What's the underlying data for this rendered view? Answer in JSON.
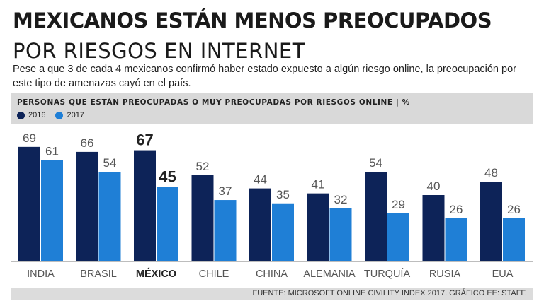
{
  "header": {
    "title": "MEXICANOS ESTÁN MENOS PREOCUPADOS",
    "subtitle": "POR RIESGOS EN INTERNET",
    "intro": "Pese a que 3 de cada 4 mexicanos confirmó haber estado expuesto a algún riesgo online, la preocupación por este tipo de amenazas cayó en el país."
  },
  "panel": {
    "heading": "PERSONAS QUE ESTÁN PREOCUPADAS O MUY PREOCUPADAS POR RIESGOS ONLINE   |   %"
  },
  "legend": [
    {
      "label": "2016",
      "color": "#0d2358"
    },
    {
      "label": "2017",
      "color": "#1f7fd6"
    }
  ],
  "chart_data": {
    "type": "bar",
    "title": "PERSONAS QUE ESTÁN PREOCUPADAS O MUY PREOCUPADAS POR RIESGOS ONLINE",
    "unit": "%",
    "categories": [
      "INDIA",
      "BRASIL",
      "MÉXICO",
      "CHILE",
      "CHINA",
      "ALEMANIA",
      "TURQUÍA",
      "RUSIA",
      "EUA"
    ],
    "highlight_category": "MÉXICO",
    "series": [
      {
        "name": "2016",
        "color": "#0d2358",
        "values": [
          69,
          66,
          67,
          52,
          44,
          41,
          54,
          40,
          48
        ]
      },
      {
        "name": "2017",
        "color": "#1f7fd6",
        "values": [
          61,
          54,
          45,
          37,
          35,
          32,
          29,
          26,
          26
        ]
      }
    ],
    "ylim": [
      0,
      100
    ],
    "xlabel": "",
    "ylabel": ""
  },
  "footer": {
    "source": "FUENTE: MICROSOFT ONLINE CIVILITY INDEX 2017. GRÁFICO EE: STAFF."
  }
}
